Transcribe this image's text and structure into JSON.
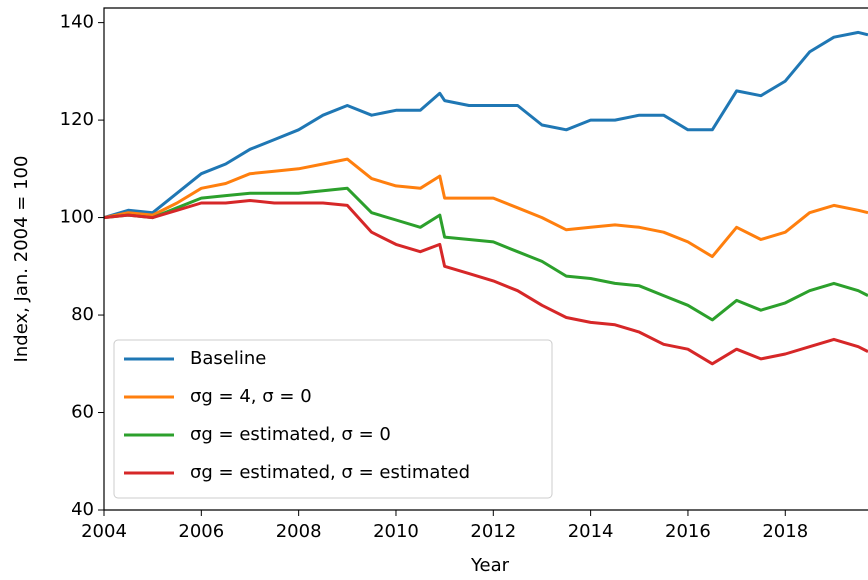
{
  "chart_data": {
    "type": "line",
    "x_label": "Year",
    "y_label": "Index, Jan. 2004 = 100",
    "x": [
      2004,
      2004.5,
      2005,
      2005.5,
      2006,
      2006.5,
      2007,
      2007.5,
      2008,
      2008.5,
      2009,
      2009.5,
      2010,
      2010.5,
      2010.9,
      2011,
      2011.5,
      2012,
      2012.5,
      2013,
      2013.5,
      2014,
      2014.5,
      2015,
      2015.5,
      2016,
      2016.5,
      2017,
      2017.5,
      2018,
      2018.5,
      2019,
      2019.5,
      2019.7
    ],
    "series": [
      {
        "name": "Baseline",
        "color": "#1f77b4",
        "values": [
          100,
          101.5,
          101,
          105,
          109,
          111,
          114,
          116,
          118,
          121,
          123,
          121,
          122,
          122,
          125.5,
          124,
          123,
          123,
          123,
          119,
          118,
          120,
          120,
          121,
          121,
          118,
          118,
          126,
          125,
          128,
          134,
          137,
          138,
          137.5
        ]
      },
      {
        "name": "σg = 4, σ = 0",
        "color": "#ff7f0e",
        "values": [
          100,
          101,
          100.5,
          103,
          106,
          107,
          109,
          109.5,
          110,
          111,
          112,
          108,
          106.5,
          106,
          108.5,
          104,
          104,
          104,
          102,
          100,
          97.5,
          98,
          98.5,
          98,
          97,
          95,
          92,
          98,
          95.5,
          97,
          101,
          102.5,
          101.5,
          101
        ]
      },
      {
        "name": "σg = estimated, σ = 0",
        "color": "#2ca02c",
        "values": [
          100,
          100.5,
          100,
          102,
          104,
          104.5,
          105,
          105,
          105,
          105.5,
          106,
          101,
          99.5,
          98,
          100.5,
          96,
          95.5,
          95,
          93,
          91,
          88,
          87.5,
          86.5,
          86,
          84,
          82,
          79,
          83,
          81,
          82.5,
          85,
          86.5,
          85,
          84
        ]
      },
      {
        "name": "σg = estimated, σ = estimated",
        "color": "#d62728",
        "values": [
          100,
          100.5,
          100,
          101.5,
          103,
          103,
          103.5,
          103,
          103,
          103,
          102.5,
          97,
          94.5,
          93,
          94.5,
          90,
          88.5,
          87,
          85,
          82,
          79.5,
          78.5,
          78,
          76.5,
          74,
          73,
          70,
          73,
          71,
          72,
          73.5,
          75,
          73.5,
          72.5
        ]
      }
    ],
    "xlim": [
      2004,
      2019.7
    ],
    "xticks": [
      2004,
      2006,
      2008,
      2010,
      2012,
      2014,
      2016,
      2018
    ],
    "ylim": [
      40,
      143
    ],
    "yticks": [
      40,
      60,
      80,
      100,
      120,
      140
    ],
    "grid": false,
    "legend": "lower left"
  }
}
